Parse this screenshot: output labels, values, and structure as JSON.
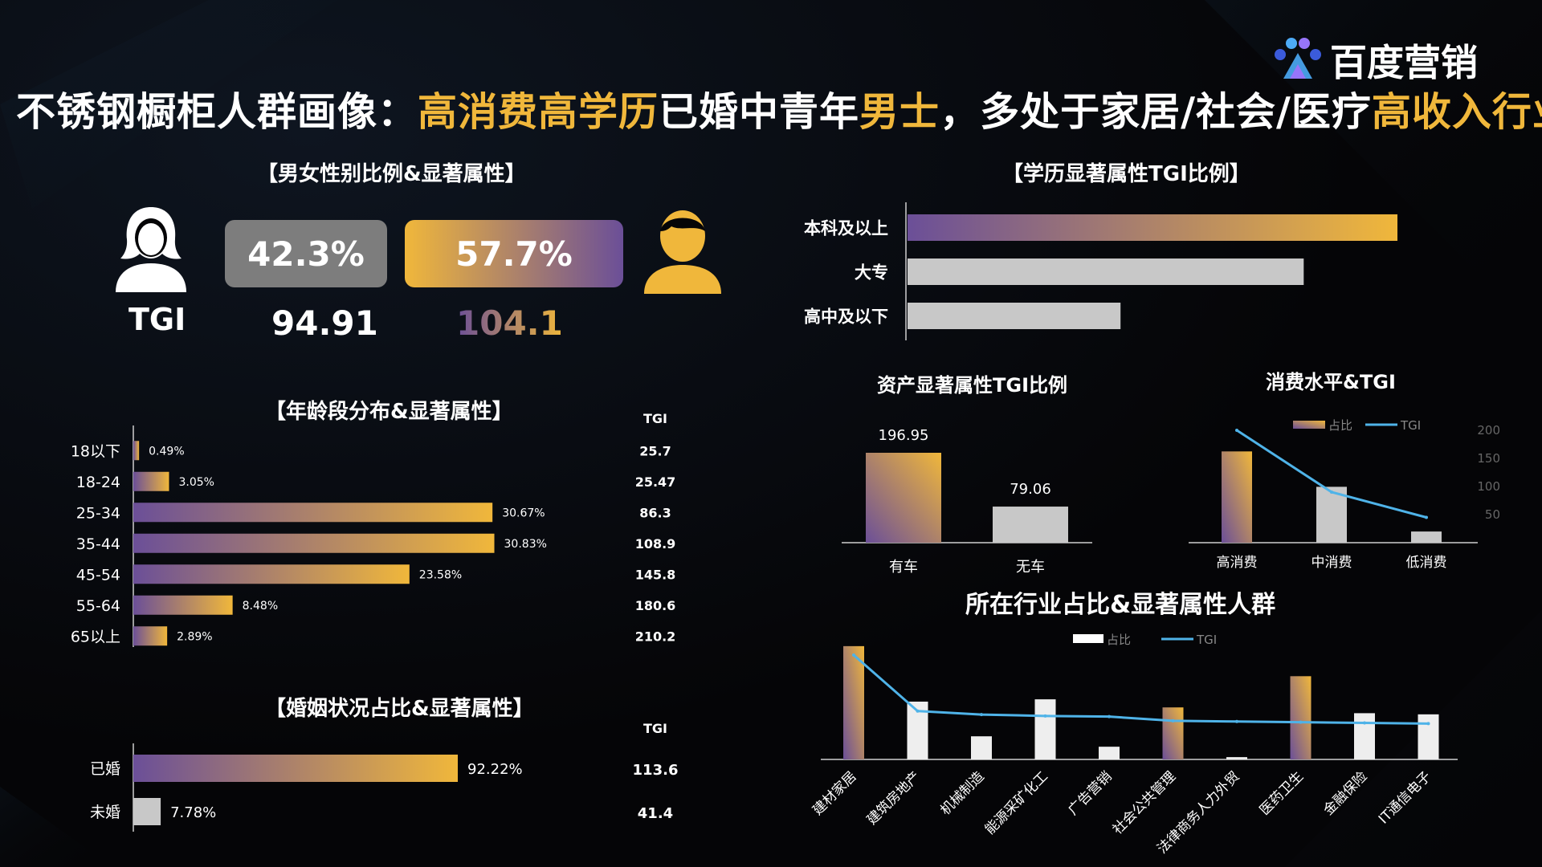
{
  "colors": {
    "gold": "#f0b73b",
    "purple": "#6b4f98",
    "grey": "#c8c8c8",
    "line": "#4fb3e8"
  },
  "title": {
    "parts": [
      {
        "text": "不锈钢橱柜人群画像：",
        "color": "white"
      },
      {
        "text": "高消费高学历",
        "color": "gold"
      },
      {
        "text": "已婚中青年",
        "color": "white"
      },
      {
        "text": "男士",
        "color": "gold"
      },
      {
        "text": "，多处于家居/社会/医疗",
        "color": "white"
      },
      {
        "text": "高收入行业",
        "color": "gold"
      }
    ]
  },
  "logo": {
    "text": "百度营销",
    "icon": "baidu-paw-icon"
  },
  "gender": {
    "title": "【男女性别比例&显著属性】",
    "tgi_label": "TGI",
    "female": {
      "icon": "female-user-icon",
      "pct": "42.3%",
      "tgi": "94.91"
    },
    "male": {
      "icon": "male-user-icon",
      "pct": "57.7%",
      "tgi": "104.1"
    }
  },
  "age": {
    "title": "【年龄段分布&显著属性】",
    "tgi_header": "TGI"
  },
  "marriage": {
    "title": "【婚姻状况占比&显著属性】",
    "tgi_header": "TGI"
  },
  "education": {
    "title": "【学历显著属性TGI比例】"
  },
  "asset": {
    "title": "资产显著属性TGI比例"
  },
  "consume": {
    "title": "消费水平&TGI"
  },
  "industry": {
    "title": "所在行业占比&显著属性人群"
  },
  "chart_data": [
    {
      "id": "age",
      "type": "bar",
      "orientation": "horizontal",
      "categories": [
        "18以下",
        "18-24",
        "25-34",
        "35-44",
        "45-54",
        "55-64",
        "65以上"
      ],
      "values": [
        0.49,
        3.05,
        30.67,
        30.83,
        23.58,
        8.48,
        2.89
      ],
      "value_labels": [
        "0.49%",
        "3.05%",
        "30.67%",
        "30.83%",
        "23.58%",
        "8.48%",
        "2.89%"
      ],
      "tgi": [
        "25.7",
        "25.47",
        "86.3",
        "108.9",
        "145.8",
        "180.6",
        "210.2"
      ]
    },
    {
      "id": "marriage",
      "type": "bar",
      "orientation": "horizontal",
      "categories": [
        "已婚",
        "未婚"
      ],
      "values": [
        92.22,
        7.78
      ],
      "value_labels": [
        "92.22%",
        "7.78%"
      ],
      "tgi": [
        "113.6",
        "41.4"
      ]
    },
    {
      "id": "education",
      "type": "bar",
      "orientation": "horizontal",
      "categories": [
        "本科及以上",
        "大专",
        "高中及以下"
      ],
      "values": [
        115,
        93,
        50
      ]
    },
    {
      "id": "asset",
      "type": "bar",
      "categories": [
        "有车",
        "无车"
      ],
      "values": [
        196.95,
        79.06
      ],
      "value_labels": [
        "196.95",
        "79.06"
      ]
    },
    {
      "id": "consume",
      "type": "bar",
      "categories": [
        "高消费",
        "中消费",
        "低消费"
      ],
      "legend": [
        "占比",
        "TGI"
      ],
      "y2_ticks": [
        "200",
        "150",
        "100",
        "50"
      ],
      "ylim": [
        0,
        200
      ],
      "series": [
        {
          "name": "占比",
          "values": [
            49,
            30,
            6
          ]
        },
        {
          "name": "TGI",
          "values": [
            175,
            90,
            45
          ]
        }
      ]
    },
    {
      "id": "industry",
      "type": "bar",
      "categories": [
        "建材家居",
        "建筑房地产",
        "机械制造",
        "能源采矿化工",
        "广告营销",
        "社会公共管理",
        "法律商务人力外贸",
        "医药卫生",
        "金融保险",
        "IT通信电子"
      ],
      "legend": [
        "占比",
        "TGI"
      ],
      "series": [
        {
          "name": "占比",
          "values": [
            98,
            50,
            20,
            52,
            11,
            45,
            2,
            72,
            40,
            39
          ]
        },
        {
          "name": "TGI",
          "values": [
            140,
            60,
            55,
            53,
            52,
            46,
            45,
            44,
            43,
            42
          ]
        }
      ]
    }
  ]
}
